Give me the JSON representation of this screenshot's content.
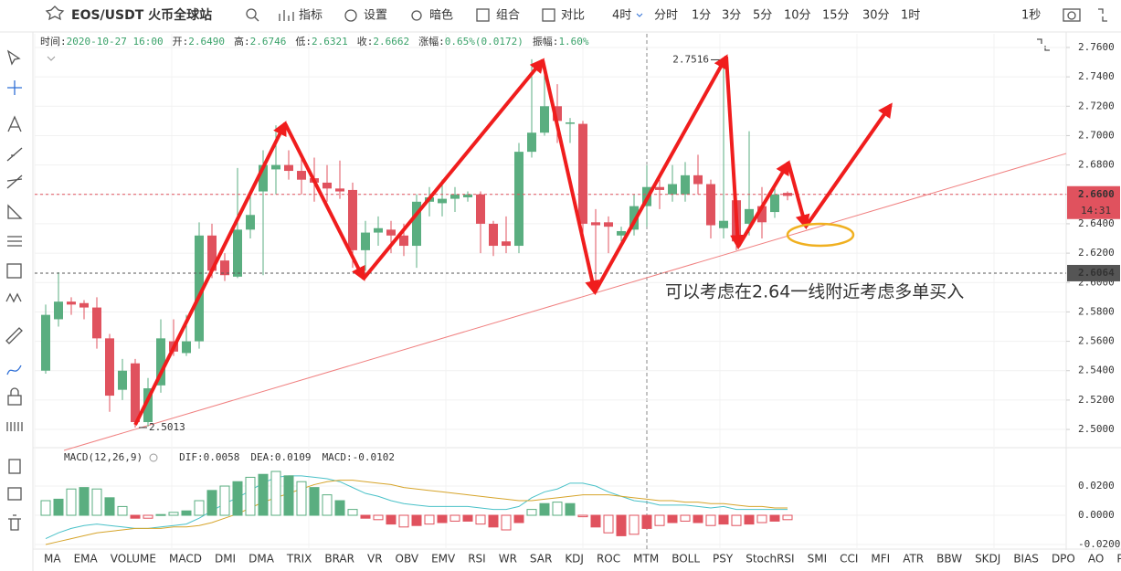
{
  "toolbar": {
    "symbol": "EOS/USDT 火币全球站",
    "tools": [
      "指标",
      "设置",
      "暗色",
      "组合",
      "对比"
    ],
    "intervals": [
      "4时",
      "分时",
      "1分",
      "3分",
      "5分",
      "10分",
      "15分",
      "30分",
      "1时"
    ],
    "refresh": "1秒"
  },
  "info": [
    {
      "label": "时间:",
      "value": "2020-10-27 16:00"
    },
    {
      "label": "开:",
      "value": "2.6490"
    },
    {
      "label": "高:",
      "value": "2.6746"
    },
    {
      "label": "低:",
      "value": "2.6321"
    },
    {
      "label": "收:",
      "value": "2.6662"
    },
    {
      "label": "涨幅:",
      "value": "0.65%(0.0172)"
    },
    {
      "label": "振幅:",
      "value": "1.60%"
    }
  ],
  "indicator_tabs": [
    "MA",
    "EMA",
    "VOLUME",
    "MACD",
    "DMI",
    "DMA",
    "TRIX",
    "BRAR",
    "VR",
    "OBV",
    "EMV",
    "RSI",
    "WR",
    "SAR",
    "KDJ",
    "ROC",
    "MTM",
    "BOLL",
    "PSY",
    "StochRSI",
    "SMI",
    "CCI",
    "MFI",
    "ATR",
    "BBW",
    "SKDJ",
    "BIAS",
    "DPO",
    "AO",
    "Position"
  ],
  "chart_data": [
    {
      "type": "candlestick",
      "up_color": "#5aae80",
      "down_color": "#e0525e",
      "open": [
        2.54,
        2.575,
        2.587,
        2.586,
        2.583,
        2.562,
        2.527,
        2.545,
        2.505,
        2.53,
        2.56,
        2.552,
        2.56,
        2.632,
        2.615,
        2.604,
        2.636,
        2.662,
        2.677,
        2.68,
        2.676,
        2.671,
        2.668,
        2.664,
        2.663,
        2.622,
        2.634,
        2.636,
        2.632,
        2.625,
        2.655,
        2.654,
        2.657,
        2.658,
        2.66,
        2.64,
        2.628,
        2.625,
        2.689,
        2.702,
        2.72,
        2.708,
        2.708,
        2.641,
        2.641,
        2.632,
        2.636,
        2.652,
        2.665,
        2.66,
        2.66,
        2.673,
        2.667,
        2.637,
        2.656,
        2.64,
        2.652,
        2.648,
        2.661
      ],
      "high": [
        2.585,
        2.607,
        2.59,
        2.588,
        2.59,
        2.565,
        2.548,
        2.548,
        2.535,
        2.575,
        2.575,
        2.578,
        2.641,
        2.64,
        2.62,
        2.678,
        2.66,
        2.69,
        2.707,
        2.69,
        2.688,
        2.685,
        2.68,
        2.683,
        2.668,
        2.642,
        2.645,
        2.642,
        2.64,
        2.66,
        2.665,
        2.67,
        2.665,
        2.662,
        2.662,
        2.642,
        2.645,
        2.695,
        2.752,
        2.742,
        2.735,
        2.712,
        2.71,
        2.65,
        2.645,
        2.638,
        2.66,
        2.68,
        2.67,
        2.68,
        2.682,
        2.687,
        2.67,
        2.7516,
        2.66,
        2.703,
        2.665,
        2.666,
        2.662
      ],
      "low": [
        2.538,
        2.57,
        2.578,
        2.575,
        2.555,
        2.512,
        2.52,
        2.5013,
        2.502,
        2.525,
        2.55,
        2.55,
        2.555,
        2.603,
        2.601,
        2.603,
        2.63,
        2.605,
        2.66,
        2.67,
        2.66,
        2.655,
        2.655,
        2.657,
        2.61,
        2.608,
        2.625,
        2.62,
        2.618,
        2.61,
        2.645,
        2.645,
        2.648,
        2.655,
        2.62,
        2.618,
        2.62,
        2.62,
        2.685,
        2.7,
        2.695,
        2.695,
        2.63,
        2.592,
        2.62,
        2.628,
        2.632,
        2.638,
        2.65,
        2.655,
        2.655,
        2.66,
        2.63,
        2.63,
        2.622,
        2.632,
        2.63,
        2.644,
        2.656
      ],
      "close": [
        2.578,
        2.587,
        2.585,
        2.583,
        2.562,
        2.523,
        2.54,
        2.505,
        2.528,
        2.562,
        2.553,
        2.56,
        2.632,
        2.608,
        2.605,
        2.636,
        2.646,
        2.68,
        2.68,
        2.676,
        2.67,
        2.668,
        2.664,
        2.662,
        2.622,
        2.634,
        2.637,
        2.632,
        2.625,
        2.655,
        2.658,
        2.657,
        2.66,
        2.66,
        2.64,
        2.625,
        2.625,
        2.689,
        2.702,
        2.72,
        2.71,
        2.709,
        2.64,
        2.639,
        2.638,
        2.635,
        2.652,
        2.665,
        2.663,
        2.667,
        2.673,
        2.667,
        2.639,
        2.642,
        2.628,
        2.65,
        2.641,
        2.66,
        2.659
      ],
      "ylim": [
        2.4876,
        2.7693
      ],
      "yticks": [
        {
          "value": 2.5,
          "label": "2.5000"
        },
        {
          "value": 2.52,
          "label": "2.5200"
        },
        {
          "value": 2.54,
          "label": "2.5400"
        },
        {
          "value": 2.56,
          "label": "2.5600"
        },
        {
          "value": 2.58,
          "label": "2.5800"
        },
        {
          "value": 2.6,
          "label": "2.6000"
        },
        {
          "value": 2.62,
          "label": "2.6200"
        },
        {
          "value": 2.64,
          "label": "2.6400"
        },
        {
          "value": 2.66,
          "label": "2.6600"
        },
        {
          "value": 2.68,
          "label": "2.6800"
        },
        {
          "value": 2.7,
          "label": "2.7000"
        },
        {
          "value": 2.72,
          "label": "2.7200"
        },
        {
          "value": 2.74,
          "label": "2.7400"
        },
        {
          "value": 2.76,
          "label": "2.7600"
        }
      ],
      "grid": true,
      "price_lines": [
        {
          "value": 2.66,
          "label": "2.6600",
          "color": "#e0525e",
          "countdown": "14:31"
        },
        {
          "value": 2.6064,
          "label": "2.6064",
          "color": "#555"
        }
      ],
      "high_mark": 2.7516,
      "low_mark": 2.5013,
      "annotation": "可以考虑在2.64一线附近考虑多单买入"
    },
    {
      "type": "macd",
      "legend": "MACD(12,26,9)",
      "readout": [
        "DIF:0.0058",
        "DEA:0.0109",
        "MACD:-0.0102"
      ],
      "series": [
        {
          "name": "DIF",
          "color": "#49c1c8",
          "values": [
            -0.016,
            -0.012,
            -0.009,
            -0.007,
            -0.006,
            -0.007,
            -0.008,
            -0.009,
            -0.009,
            -0.008,
            -0.007,
            -0.006,
            -0.002,
            0.003,
            0.008,
            0.012,
            0.017,
            0.022,
            0.026,
            0.027,
            0.027,
            0.026,
            0.025,
            0.023,
            0.019,
            0.015,
            0.013,
            0.01,
            0.008,
            0.007,
            0.006,
            0.006,
            0.006,
            0.006,
            0.005,
            0.004,
            0.004,
            0.006,
            0.012,
            0.016,
            0.018,
            0.022,
            0.022,
            0.02,
            0.016,
            0.013,
            0.01,
            0.009,
            0.007,
            0.007,
            0.007,
            0.006,
            0.005,
            0.006,
            0.004,
            0.004,
            0.004,
            0.004,
            0.004
          ]
        },
        {
          "name": "DEA",
          "color": "#d6a42a",
          "values": [
            -0.02,
            -0.018,
            -0.016,
            -0.014,
            -0.012,
            -0.011,
            -0.01,
            -0.009,
            -0.009,
            -0.009,
            -0.008,
            -0.008,
            -0.007,
            -0.005,
            -0.002,
            0.001,
            0.005,
            0.009,
            0.012,
            0.015,
            0.018,
            0.021,
            0.023,
            0.024,
            0.024,
            0.023,
            0.022,
            0.021,
            0.019,
            0.018,
            0.017,
            0.016,
            0.015,
            0.014,
            0.013,
            0.012,
            0.011,
            0.01,
            0.01,
            0.011,
            0.012,
            0.013,
            0.014,
            0.014,
            0.014,
            0.013,
            0.012,
            0.011,
            0.01,
            0.01,
            0.009,
            0.009,
            0.008,
            0.008,
            0.007,
            0.006,
            0.006,
            0.005,
            0.005
          ]
        },
        {
          "name": "MACD",
          "color": "#e0525e",
          "values": [
            0.01,
            0.011,
            0.018,
            0.019,
            0.018,
            0.012,
            0.006,
            -0.002,
            -0.002,
            0.0005,
            0.002,
            0.003,
            0.01,
            0.017,
            0.02,
            0.023,
            0.026,
            0.028,
            0.03,
            0.027,
            0.023,
            0.019,
            0.014,
            0.01,
            0.004,
            -0.002,
            -0.003,
            -0.006,
            -0.008,
            -0.007,
            -0.006,
            -0.005,
            -0.004,
            -0.004,
            -0.006,
            -0.008,
            -0.01,
            -0.005,
            0.004,
            0.008,
            0.009,
            0.008,
            -0.001,
            -0.008,
            -0.012,
            -0.014,
            -0.013,
            -0.009,
            -0.007,
            -0.005,
            -0.004,
            -0.005,
            -0.007,
            -0.006,
            -0.007,
            -0.006,
            -0.005,
            -0.004,
            -0.003
          ]
        }
      ],
      "ylim": [
        -0.0225,
        0.0444
      ],
      "yticks": [
        {
          "value": 0.02,
          "label": "0.0200"
        },
        {
          "value": 0,
          "label": "0.0000"
        },
        {
          "value": -0.02,
          "label": "-0.0200"
        }
      ]
    }
  ]
}
